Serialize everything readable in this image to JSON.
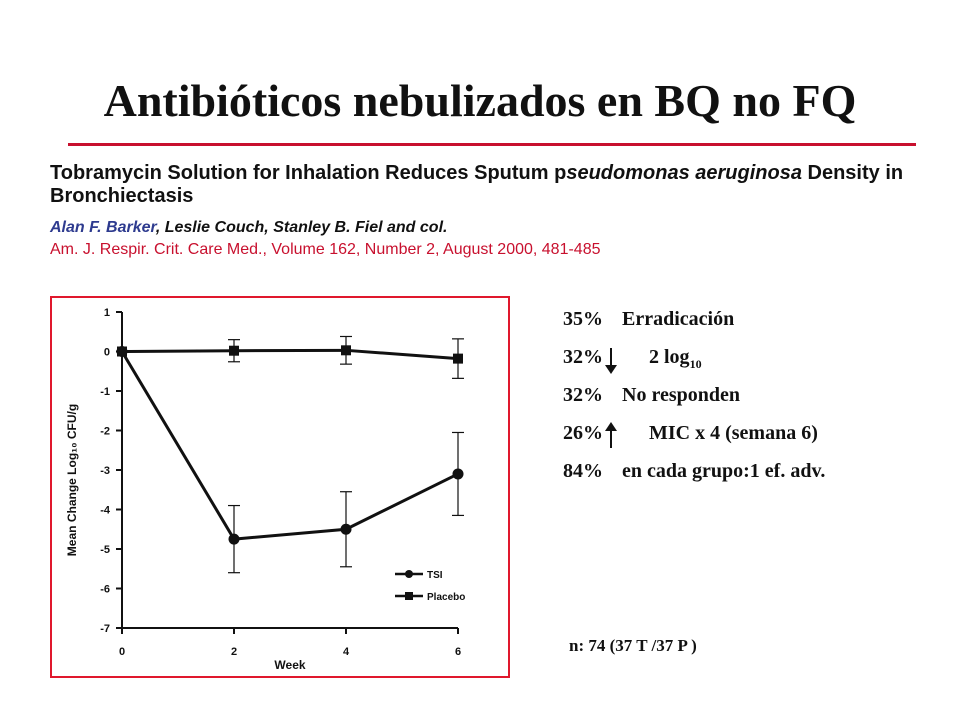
{
  "slide": {
    "title": "Antibióticos nebulizados en BQ no FQ",
    "paper_title": "Tobramycin Solution for Inhalation Reduces Sputum pseudomonas aeruginosa Density in Bronchiectasis",
    "authors_lead": "Alan F. Barker",
    "authors_rest": ", Leslie Couch, Stanley B. Fiel and col.",
    "citation": "Am. J. Respir. Crit. Care Med., Volume 162, Number 2, August 2000, 481-485",
    "stats": [
      {
        "value": "35%",
        "text": "Erradicación"
      },
      {
        "value": "32%",
        "text": "2 log",
        "sub": "10",
        "arrow": "down"
      },
      {
        "value": "32%",
        "text": "No responden"
      },
      {
        "value": "26%",
        "text": "MIC x 4 (semana 6)",
        "arrow": "up"
      },
      {
        "value": "84%",
        "text": "en cada grupo:1 ef. adv."
      }
    ],
    "n_text": "n: 74 (37 T /37 P )",
    "colors": {
      "accent_red": "#c8102e",
      "author_blue": "#2e3b8f"
    }
  },
  "chart_data": {
    "type": "line",
    "xlabel": "Week",
    "ylabel": "Mean Change Log₁₀ CFU/g",
    "x": [
      0,
      2,
      4,
      6
    ],
    "xlim": [
      0,
      6
    ],
    "ylim": [
      -7,
      1
    ],
    "xticks": [
      0,
      2,
      4,
      6
    ],
    "yticks": [
      1,
      0,
      -1,
      -2,
      -3,
      -4,
      -5,
      -6,
      -7
    ],
    "grid": false,
    "legend_position": "bottom-right",
    "series": [
      {
        "name": "TSI",
        "marker": "circle",
        "values": [
          0,
          -4.75,
          -4.5,
          -3.1
        ],
        "error": [
          0,
          0.85,
          0.95,
          1.05
        ]
      },
      {
        "name": "Placebo",
        "marker": "square",
        "values": [
          0,
          0.02,
          0.03,
          -0.18
        ],
        "error": [
          0,
          0.28,
          0.35,
          0.5
        ]
      }
    ]
  }
}
